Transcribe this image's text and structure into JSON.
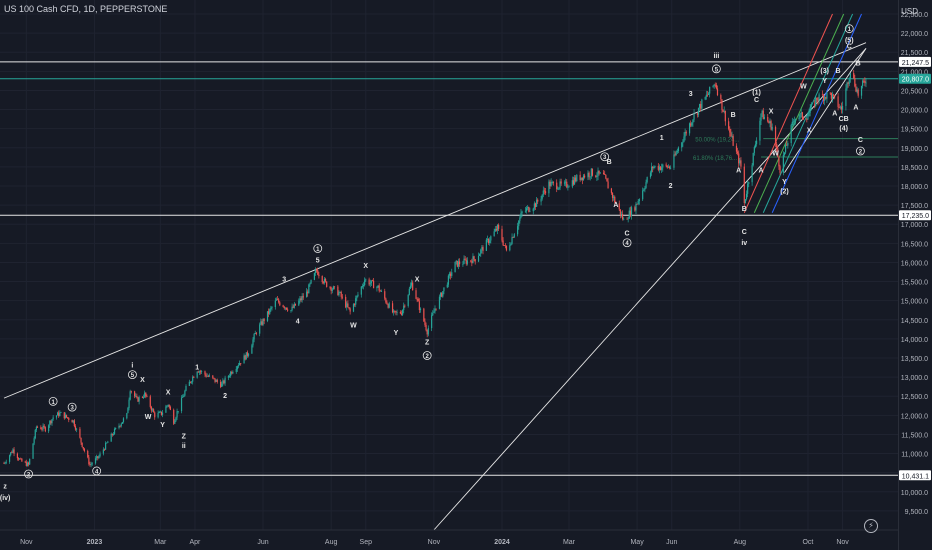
{
  "header": {
    "title": "US 100 Cash CFD, 1D, PEPPERSTONE",
    "currency": "USD"
  },
  "colors": {
    "bg": "#161a25",
    "up": "#26a69a",
    "down": "#ef5350",
    "line": "#e6e6e6",
    "grid": "#1f2330",
    "fib": "#2e7d5b",
    "axisText": "#b2b5be"
  },
  "icons": {
    "logo": "tradingview-logo-icon"
  },
  "chart_data": {
    "type": "candlestick",
    "ylim": [
      9000,
      22500
    ],
    "x_range": [
      "2022-10-12",
      "2024-11-22"
    ],
    "y_ticks": [
      9500,
      10000,
      10500,
      11000,
      11500,
      12000,
      12500,
      13000,
      13500,
      14000,
      14500,
      15000,
      15500,
      16000,
      16500,
      17000,
      17500,
      18000,
      18500,
      19000,
      19500,
      20000,
      20500,
      21000,
      21500,
      22000,
      22500
    ],
    "y_tick_labels": [
      "9,500.0",
      "10,000.0",
      "10,500.0",
      "11,000.0",
      "11,500.0",
      "12,000.0",
      "12,500.0",
      "13,000.0",
      "13,500.0",
      "14,000.0",
      "14,500.0",
      "15,000.0",
      "15,500.0",
      "16,000.0",
      "16,500.0",
      "17,000.0",
      "17,500.0",
      "18,000.0",
      "18,500.0",
      "19,000.0",
      "19,500.0",
      "20,000.0",
      "20,500.0",
      "21,000.0",
      "21,500.0",
      "22,000.0",
      "22,500.0"
    ],
    "x_ticks": [
      {
        "label": "Nov",
        "date": "2022-11-01"
      },
      {
        "label": "2023",
        "date": "2023-01-01"
      },
      {
        "label": "Mar",
        "date": "2023-03-01"
      },
      {
        "label": "Apr",
        "date": "2023-04-01"
      },
      {
        "label": "Jun",
        "date": "2023-06-01"
      },
      {
        "label": "Aug",
        "date": "2023-08-01"
      },
      {
        "label": "Sep",
        "date": "2023-09-01"
      },
      {
        "label": "Nov",
        "date": "2023-11-01"
      },
      {
        "label": "2024",
        "date": "2024-01-01"
      },
      {
        "label": "Mar",
        "date": "2024-03-01"
      },
      {
        "label": "May",
        "date": "2024-05-01"
      },
      {
        "label": "Jun",
        "date": "2024-06-01"
      },
      {
        "label": "Aug",
        "date": "2024-08-01"
      },
      {
        "label": "Oct",
        "date": "2024-10-01"
      },
      {
        "label": "Nov",
        "date": "2024-11-01"
      }
    ],
    "price_path": [
      [
        "2022-10-12",
        10750
      ],
      [
        "2022-10-20",
        11100
      ],
      [
        "2022-10-27",
        10800
      ],
      [
        "2022-11-03",
        10700
      ],
      [
        "2022-11-10",
        11700
      ],
      [
        "2022-11-18",
        11650
      ],
      [
        "2022-11-25",
        11950
      ],
      [
        "2022-12-01",
        12050
      ],
      [
        "2022-12-13",
        11850
      ],
      [
        "2022-12-22",
        11150
      ],
      [
        "2022-12-28",
        10700
      ],
      [
        "2023-01-05",
        10920
      ],
      [
        "2023-01-18",
        11550
      ],
      [
        "2023-01-30",
        12000
      ],
      [
        "2023-02-02",
        12700
      ],
      [
        "2023-02-08",
        12400
      ],
      [
        "2023-02-15",
        12550
      ],
      [
        "2023-02-24",
        12000
      ],
      [
        "2023-03-02",
        12050
      ],
      [
        "2023-03-08",
        12300
      ],
      [
        "2023-03-13",
        11850
      ],
      [
        "2023-03-24",
        12700
      ],
      [
        "2023-04-03",
        13200
      ],
      [
        "2023-04-14",
        13000
      ],
      [
        "2023-04-25",
        12800
      ],
      [
        "2023-05-05",
        13200
      ],
      [
        "2023-05-18",
        13600
      ],
      [
        "2023-05-26",
        14200
      ],
      [
        "2023-06-13",
        15000
      ],
      [
        "2023-06-26",
        14750
      ],
      [
        "2023-07-10",
        15200
      ],
      [
        "2023-07-19",
        15800
      ],
      [
        "2023-07-27",
        15450
      ],
      [
        "2023-08-08",
        15200
      ],
      [
        "2023-08-18",
        14700
      ],
      [
        "2023-08-31",
        15550
      ],
      [
        "2023-09-12",
        15350
      ],
      [
        "2023-09-26",
        14650
      ],
      [
        "2023-10-03",
        14700
      ],
      [
        "2023-10-12",
        15450
      ],
      [
        "2023-10-26",
        14200
      ],
      [
        "2023-11-02",
        14800
      ],
      [
        "2023-11-20",
        15950
      ],
      [
        "2023-12-08",
        16100
      ],
      [
        "2023-12-28",
        16900
      ],
      [
        "2024-01-05",
        16300
      ],
      [
        "2024-01-19",
        17300
      ],
      [
        "2024-02-01",
        17550
      ],
      [
        "2024-02-12",
        18050
      ],
      [
        "2024-02-26",
        18000
      ],
      [
        "2024-03-08",
        18200
      ],
      [
        "2024-03-21",
        18350
      ],
      [
        "2024-04-01",
        18250
      ],
      [
        "2024-04-19",
        17100
      ],
      [
        "2024-04-30",
        17500
      ],
      [
        "2024-05-15",
        18500
      ],
      [
        "2024-05-31",
        18500
      ],
      [
        "2024-06-07",
        19000
      ],
      [
        "2024-06-20",
        19800
      ],
      [
        "2024-07-10",
        20700
      ],
      [
        "2024-07-24",
        19300
      ],
      [
        "2024-08-02",
        18500
      ],
      [
        "2024-08-05",
        17550
      ],
      [
        "2024-08-20",
        19900
      ],
      [
        "2024-08-30",
        19550
      ],
      [
        "2024-09-06",
        18450
      ],
      [
        "2024-09-19",
        19800
      ],
      [
        "2024-10-01",
        19850
      ],
      [
        "2024-10-09",
        20300
      ],
      [
        "2024-10-21",
        20400
      ],
      [
        "2024-10-31",
        20000
      ],
      [
        "2024-11-08",
        21050
      ],
      [
        "2024-11-15",
        20400
      ],
      [
        "2024-11-22",
        20807
      ]
    ],
    "horizontal_levels": [
      {
        "value": 21247.5,
        "label": "21,247.5",
        "tag_color": "#ffffff",
        "tag_text": "#131722",
        "line": "#e6e6e6"
      },
      {
        "value": 20807.0,
        "label": "20,807.0",
        "tag_color": "#26a69a",
        "tag_text": "#ffffff",
        "line": "#26a69a"
      },
      {
        "value": 17235.0,
        "label": "17,235.0",
        "tag_color": "#ffffff",
        "tag_text": "#131722",
        "line": "#e6e6e6"
      },
      {
        "value": 10431.1,
        "label": "10,431.1",
        "tag_color": "#ffffff",
        "tag_text": "#131722",
        "line": "#e6e6e6"
      }
    ],
    "fib_levels": [
      {
        "value": 19240,
        "label": "50.00% (19,24...",
        "start": "2024-08-22"
      },
      {
        "value": 18760,
        "label": "61.80% (18,76...",
        "start": "2024-08-20"
      }
    ],
    "trendlines": [
      {
        "from": [
          "2022-10-12",
          12450
        ],
        "to": [
          "2024-11-22",
          21750
        ]
      },
      {
        "from": [
          "2023-11-01",
          9000
        ],
        "to": [
          "2024-11-22",
          21600
        ]
      },
      {
        "from": [
          "2024-09-10",
          18350
        ],
        "to": [
          "2024-11-22",
          21600
        ]
      }
    ],
    "fan_lines": [
      {
        "color": "#ef5350",
        "from": [
          "2024-08-05",
          17300
        ],
        "to": [
          "2024-10-23",
          22500
        ]
      },
      {
        "color": "#4caf50",
        "from": [
          "2024-08-14",
          17300
        ],
        "to": [
          "2024-11-02",
          22500
        ]
      },
      {
        "color": "#26a69a",
        "from": [
          "2024-08-22",
          17300
        ],
        "to": [
          "2024-11-10",
          22500
        ]
      },
      {
        "color": "#2962ff",
        "from": [
          "2024-08-30",
          17300
        ],
        "to": [
          "2024-11-18",
          22500
        ]
      }
    ],
    "wave_labels": [
      {
        "t": "z",
        "d": "2022-10-13",
        "v": 10090
      },
      {
        "t": "(iv)",
        "d": "2022-10-13",
        "v": 9790
      },
      {
        "t": "2",
        "d": "2022-11-03",
        "v": 10400,
        "circled": true
      },
      {
        "t": "1",
        "d": "2022-11-25",
        "v": 12300,
        "circled": true
      },
      {
        "t": "3",
        "d": "2022-12-12",
        "v": 12150,
        "circled": true
      },
      {
        "t": "4",
        "d": "2023-01-03",
        "v": 10480,
        "circled": true
      },
      {
        "t": "i",
        "d": "2023-02-04",
        "v": 13250
      },
      {
        "t": "5",
        "d": "2023-02-04",
        "v": 13000,
        "circled": true
      },
      {
        "t": "X",
        "d": "2023-02-13",
        "v": 12870
      },
      {
        "t": "W",
        "d": "2023-02-18",
        "v": 11900
      },
      {
        "t": "Y",
        "d": "2023-03-03",
        "v": 11700
      },
      {
        "t": "X",
        "d": "2023-03-08",
        "v": 12550
      },
      {
        "t": "Z",
        "d": "2023-03-22",
        "v": 11400
      },
      {
        "t": "ii",
        "d": "2023-03-22",
        "v": 11150
      },
      {
        "t": "1",
        "d": "2023-04-03",
        "v": 13200
      },
      {
        "t": "2",
        "d": "2023-04-28",
        "v": 12450
      },
      {
        "t": "3",
        "d": "2023-06-20",
        "v": 15500
      },
      {
        "t": "4",
        "d": "2023-07-02",
        "v": 14400
      },
      {
        "t": "1",
        "d": "2023-07-20",
        "v": 16300,
        "circled": true
      },
      {
        "t": "5",
        "d": "2023-07-20",
        "v": 16000
      },
      {
        "t": "X",
        "d": "2023-09-01",
        "v": 15850
      },
      {
        "t": "W",
        "d": "2023-08-21",
        "v": 14300
      },
      {
        "t": "Y",
        "d": "2023-09-28",
        "v": 14100
      },
      {
        "t": "X",
        "d": "2023-10-17",
        "v": 15500
      },
      {
        "t": "Z",
        "d": "2023-10-26",
        "v": 13850
      },
      {
        "t": "2",
        "d": "2023-10-26",
        "v": 13500,
        "circled": true
      },
      {
        "t": "3",
        "d": "2024-04-02",
        "v": 18700,
        "circled": true
      },
      {
        "t": "B",
        "d": "2024-04-06",
        "v": 18570
      },
      {
        "t": "A",
        "d": "2024-04-12",
        "v": 17450
      },
      {
        "t": "C",
        "d": "2024-04-22",
        "v": 16700
      },
      {
        "t": "4",
        "d": "2024-04-22",
        "v": 16450,
        "circled": true
      },
      {
        "t": "1",
        "d": "2024-05-23",
        "v": 19200
      },
      {
        "t": "2",
        "d": "2024-05-31",
        "v": 17950
      },
      {
        "t": "3",
        "d": "2024-06-18",
        "v": 20350
      },
      {
        "t": "iii",
        "d": "2024-07-11",
        "v": 21350
      },
      {
        "t": "5",
        "d": "2024-07-11",
        "v": 21000,
        "circled": true
      },
      {
        "t": "B",
        "d": "2024-07-26",
        "v": 19800
      },
      {
        "t": "A",
        "d": "2024-07-31",
        "v": 18350
      },
      {
        "t": "B",
        "d": "2024-08-05",
        "v": 17350
      },
      {
        "t": "C",
        "d": "2024-08-05",
        "v": 16750
      },
      {
        "t": "iv",
        "d": "2024-08-05",
        "v": 16450
      },
      {
        "t": "(1)",
        "d": "2024-08-16",
        "v": 20400
      },
      {
        "t": "C",
        "d": "2024-08-16",
        "v": 20200
      },
      {
        "t": "A",
        "d": "2024-08-20",
        "v": 18350
      },
      {
        "t": "X",
        "d": "2024-08-29",
        "v": 19900
      },
      {
        "t": "W",
        "d": "2024-09-02",
        "v": 18800
      },
      {
        "t": "Y",
        "d": "2024-09-10",
        "v": 18050
      },
      {
        "t": "(2)",
        "d": "2024-09-10",
        "v": 17800
      },
      {
        "t": "W",
        "d": "2024-09-27",
        "v": 20550
      },
      {
        "t": "X",
        "d": "2024-10-02",
        "v": 19400
      },
      {
        "t": "(3)",
        "d": "2024-10-16",
        "v": 20950
      },
      {
        "t": "Y",
        "d": "2024-10-16",
        "v": 20700
      },
      {
        "t": "B",
        "d": "2024-10-28",
        "v": 20950
      },
      {
        "t": "A",
        "d": "2024-10-25",
        "v": 19850
      },
      {
        "t": "CB",
        "d": "2024-11-02",
        "v": 19700
      },
      {
        "t": "(4)",
        "d": "2024-11-02",
        "v": 19450
      },
      {
        "t": "1",
        "d": "2024-11-07",
        "v": 22050,
        "circled": true
      },
      {
        "t": "(5)",
        "d": "2024-11-07",
        "v": 21750
      },
      {
        "t": "C",
        "d": "2024-11-07",
        "v": 21600
      },
      {
        "t": "B",
        "d": "2024-11-15",
        "v": 21150
      },
      {
        "t": "A",
        "d": "2024-11-13",
        "v": 20000
      },
      {
        "t": "C",
        "d": "2024-11-17",
        "v": 19150
      },
      {
        "t": "2",
        "d": "2024-11-17",
        "v": 18850,
        "circled": true
      }
    ]
  }
}
